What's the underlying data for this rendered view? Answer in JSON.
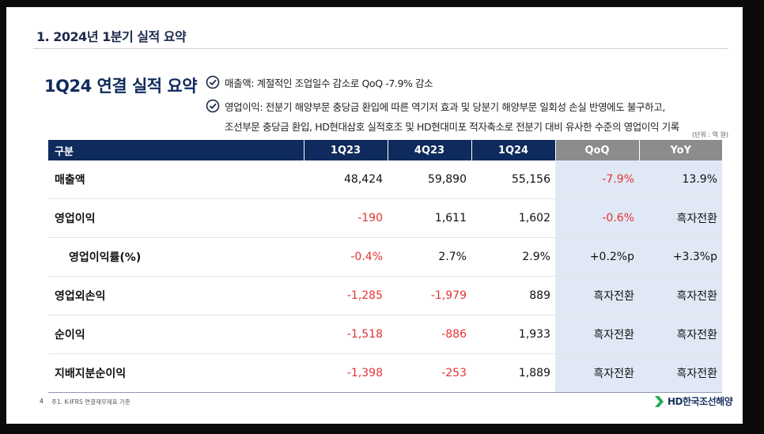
{
  "section_title": "1. 2024년 1분기 실적 요약",
  "main_title": "1Q24 연결 실적 요약",
  "notes": [
    {
      "line1": "매출액: 계절적인 조업일수 감소로 QoQ -7.9% 감소",
      "line2": ""
    },
    {
      "line1": "영업이익: 전분기 해양부문 충당금 환입에 따른 역기저 효과 및 당분기 해양부문 일회성 손실 반영에도 불구하고,",
      "line2": "조선부문 충당금 환입, HD현대삼호 실적호조 및 HD현대미포 적자축소로 전분기 대비 유사한 수준의 영업이익 기록"
    }
  ],
  "unit_label": "(단위 : 억 원)",
  "table": {
    "headers": [
      "구분",
      "1Q23",
      "4Q23",
      "1Q24",
      "QoQ",
      "YoY"
    ],
    "rows": [
      {
        "label": "매출액",
        "cells": [
          "48,424",
          "59,890",
          "55,156",
          "-7.9%",
          "13.9%"
        ],
        "neg": [
          false,
          false,
          false,
          true,
          false
        ]
      },
      {
        "label": "영업이익",
        "cells": [
          "-190",
          "1,611",
          "1,602",
          "-0.6%",
          "흑자전환"
        ],
        "neg": [
          true,
          false,
          false,
          true,
          false
        ]
      },
      {
        "label": "영업이익률(%)",
        "cells": [
          "-0.4%",
          "2.7%",
          "2.9%",
          "+0.2%p",
          "+3.3%p"
        ],
        "neg": [
          true,
          false,
          false,
          false,
          false
        ],
        "indent": true
      },
      {
        "label": "영업외손익",
        "cells": [
          "-1,285",
          "-1,979",
          "889",
          "흑자전환",
          "흑자전환"
        ],
        "neg": [
          true,
          true,
          false,
          false,
          false
        ]
      },
      {
        "label": "순이익",
        "cells": [
          "-1,518",
          "-886",
          "1,933",
          "흑자전환",
          "흑자전환"
        ],
        "neg": [
          true,
          true,
          false,
          false,
          false
        ]
      },
      {
        "label": "지배지분순이익",
        "cells": [
          "-1,398",
          "-253",
          "1,889",
          "흑자전환",
          "흑자전환"
        ],
        "neg": [
          true,
          true,
          false,
          false,
          false
        ]
      }
    ]
  },
  "footer": {
    "page_number": "4",
    "footnote": "주1. K-IFRS 연결재무제표 기준",
    "logo_text": "HD한국조선해양"
  },
  "colors": {
    "navy": "#0f2a5c",
    "header_gray": "#8c8c8c",
    "highlight": "#e1e8f5",
    "negative": "#e03434"
  },
  "icons": [
    "check-circle-icon",
    "hd-logo-icon"
  ]
}
